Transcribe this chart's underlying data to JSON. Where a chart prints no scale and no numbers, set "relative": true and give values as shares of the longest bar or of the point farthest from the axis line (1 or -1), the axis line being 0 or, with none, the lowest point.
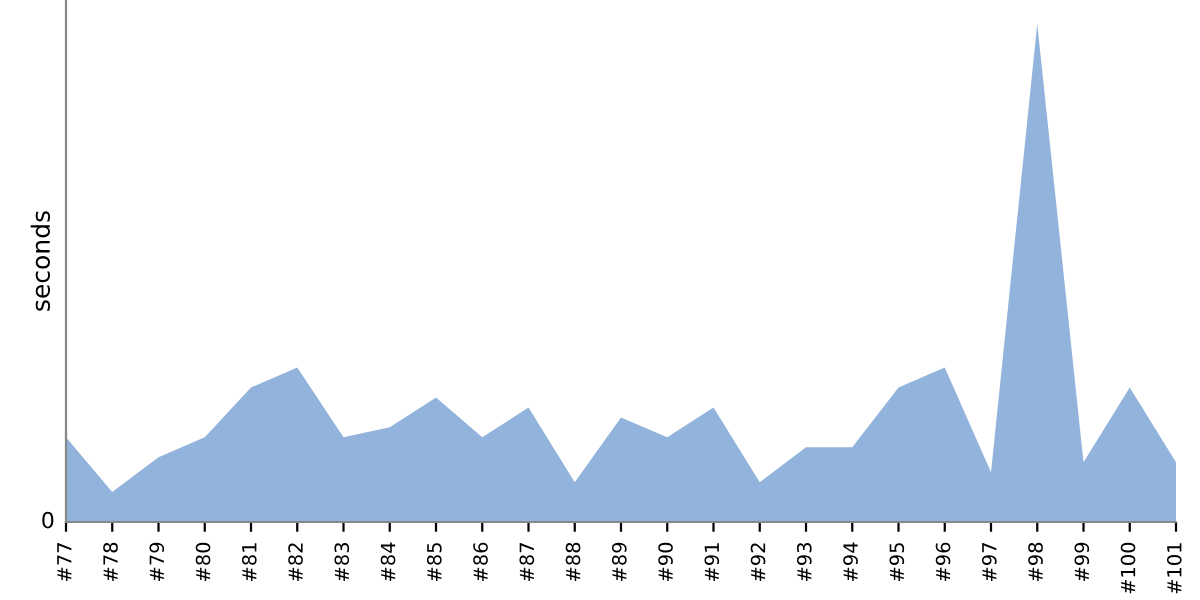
{
  "chart_data": {
    "type": "area",
    "ylabel": "seconds",
    "relative": true,
    "annotations": [
      "0"
    ],
    "categories": [
      "#77",
      "#78",
      "#79",
      "#80",
      "#81",
      "#82",
      "#83",
      "#84",
      "#85",
      "#86",
      "#87",
      "#88",
      "#89",
      "#90",
      "#91",
      "#92",
      "#93",
      "#94",
      "#95",
      "#96",
      "#97",
      "#98",
      "#99",
      "#100",
      "#101"
    ],
    "series": [
      {
        "color": "#92b3dc",
        "values": [
          0.17,
          0.06,
          0.13,
          0.17,
          0.27,
          0.31,
          0.17,
          0.19,
          0.25,
          0.17,
          0.23,
          0.08,
          0.21,
          0.17,
          0.23,
          0.08,
          0.15,
          0.15,
          0.27,
          0.31,
          0.1,
          1,
          0.12,
          0.27,
          0.12
        ]
      }
    ],
    "grid": false,
    "legend": false
  }
}
